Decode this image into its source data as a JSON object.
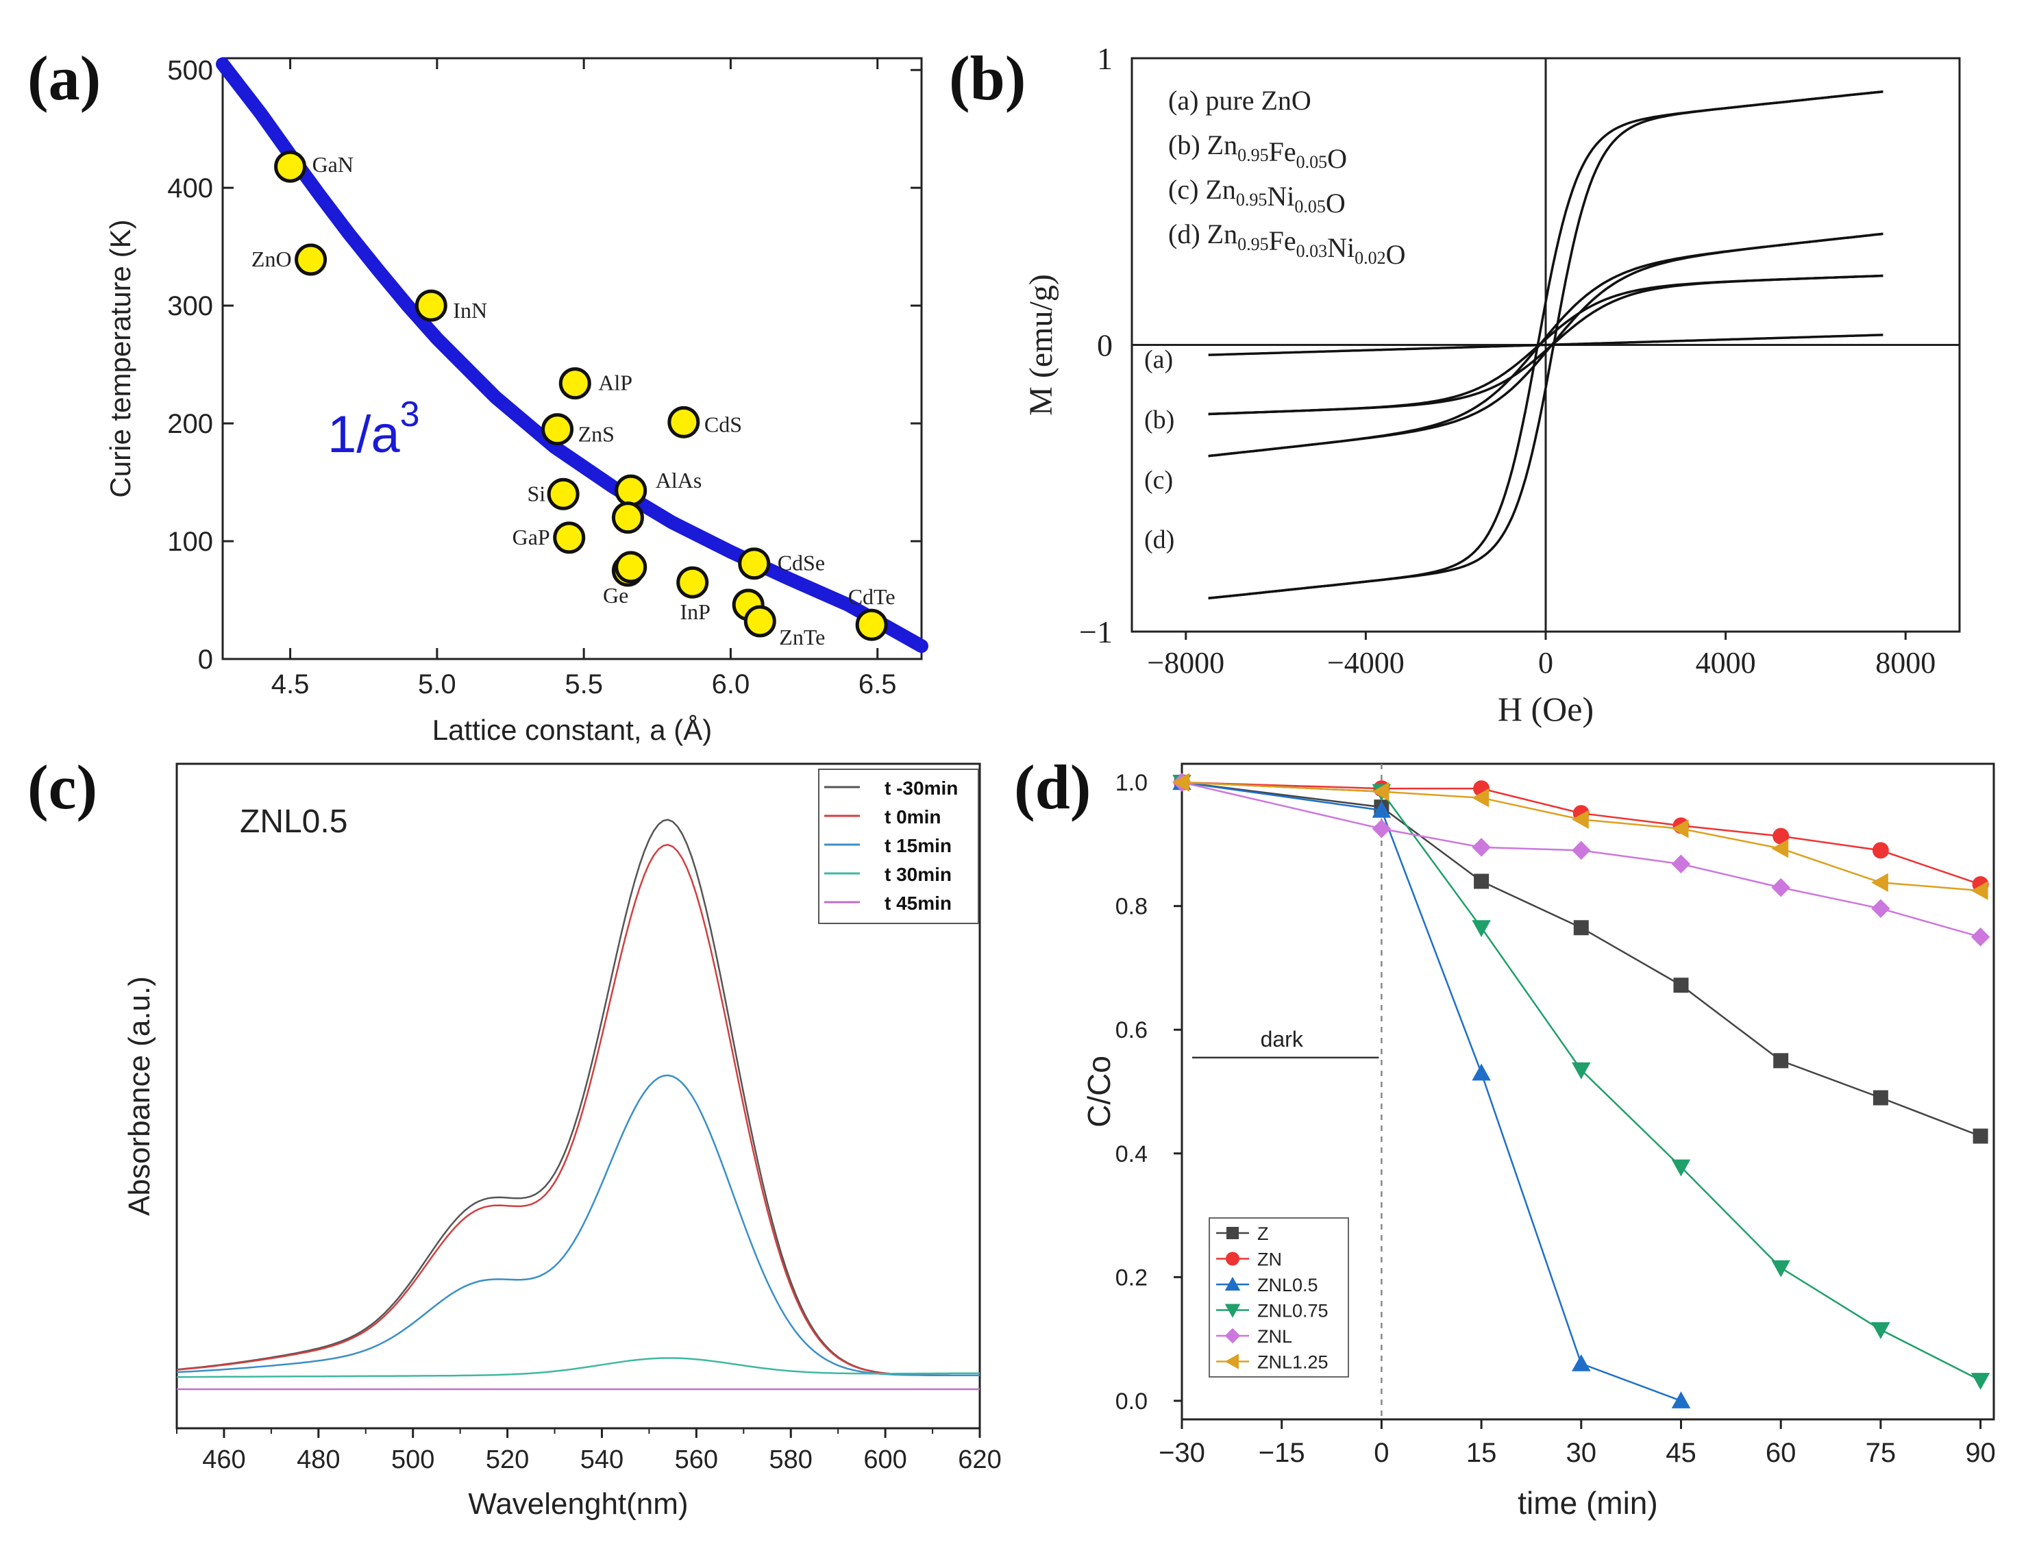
{
  "chart_data": [
    {
      "panel": "(a)",
      "type": "scatter",
      "title": "",
      "xlabel": "Lattice constant, a (Å)",
      "ylabel": "Curie temperature (K)",
      "xlim": [
        4.27,
        6.65
      ],
      "ylim": [
        0,
        510
      ],
      "xticks": [
        4.5,
        5.0,
        5.5,
        6.0,
        6.5
      ],
      "xticklabels": [
        "4.5",
        "5.0",
        "5.5",
        "6.0",
        "6.5"
      ],
      "yticks": [
        0,
        100,
        200,
        300,
        400,
        500
      ],
      "yticklabels": [
        "0",
        "100",
        "200",
        "300",
        "400",
        "500"
      ],
      "fit_label": "1/a",
      "fit_exponent": "3",
      "fit_curve": {
        "x": [
          4.27,
          4.4,
          4.5,
          4.6,
          4.7,
          4.8,
          4.9,
          5.0,
          5.2,
          5.4,
          5.6,
          5.8,
          6.0,
          6.2,
          6.4,
          6.65
        ],
        "y": [
          505,
          463,
          428,
          394,
          361,
          330,
          300,
          272,
          222,
          180,
          146,
          116,
          91,
          68,
          46,
          11
        ]
      },
      "points": [
        {
          "name": "GaN",
          "x": 4.5,
          "y": 418
        },
        {
          "name": "ZnO",
          "x": 4.57,
          "y": 339
        },
        {
          "name": "InN",
          "x": 4.98,
          "y": 300
        },
        {
          "name": "AlP",
          "x": 5.47,
          "y": 234
        },
        {
          "name": "ZnS",
          "x": 5.41,
          "y": 195
        },
        {
          "name": "CdS",
          "x": 5.84,
          "y": 201
        },
        {
          "name": "Si",
          "x": 5.43,
          "y": 140
        },
        {
          "name": "AlAs",
          "x": 5.66,
          "y": 143
        },
        {
          "name": "",
          "x": 5.65,
          "y": 120
        },
        {
          "name": "GaP",
          "x": 5.45,
          "y": 103
        },
        {
          "name": "",
          "x": 5.65,
          "y": 75
        },
        {
          "name": "Ge",
          "x": 5.66,
          "y": 78
        },
        {
          "name": "InP",
          "x": 5.87,
          "y": 65
        },
        {
          "name": "CdSe",
          "x": 6.08,
          "y": 81
        },
        {
          "name": "",
          "x": 6.06,
          "y": 46
        },
        {
          "name": "ZnTe",
          "x": 6.1,
          "y": 32
        },
        {
          "name": "CdTe",
          "x": 6.48,
          "y": 29
        }
      ],
      "point_color": "#ffee00",
      "curve_color": "#1a1ad8"
    },
    {
      "panel": "(b)",
      "type": "line",
      "xlabel": "H (Oe)",
      "ylabel": "M (emu/g)",
      "xlim": [
        -9200,
        9200
      ],
      "ylim": [
        -1,
        1
      ],
      "xticks": [
        -8000,
        -4000,
        0,
        4000,
        8000
      ],
      "xticklabels": [
        "−8000",
        "−4000",
        "0",
        "4000",
        "8000"
      ],
      "yticks": [
        -1,
        0,
        1
      ],
      "yticklabels": [
        "−1",
        "0",
        "1"
      ],
      "legend": [
        "(a) pure ZnO",
        "(b) Zn0.95Fe0.05O",
        "(c) Zn0.95Ni0.05O",
        "(d) Zn0.95Fe0.03Ni0.02O"
      ],
      "curve_labels": [
        "(a)",
        "(b)",
        "(c)",
        "(d)"
      ],
      "series": [
        {
          "name": "(a)",
          "Ms": 0.035,
          "slope_only": true,
          "Hc": 0
        },
        {
          "name": "(b)",
          "Ms": 0.2,
          "chi": 5.5e-06,
          "H0": 1500,
          "Hc": 150
        },
        {
          "name": "(c)",
          "Ms": 0.26,
          "chi": 1.7e-05,
          "H0": 1500,
          "Hc": 150
        },
        {
          "name": "(d)",
          "Ms": 0.76,
          "chi": 1.65e-05,
          "H0": 900,
          "Hc": 180
        }
      ]
    },
    {
      "panel": "(c)",
      "type": "line",
      "annotation": "ZNL0.5",
      "xlabel": "Wavelenght(nm)",
      "ylabel": "Absorbance (a.u.)",
      "xlim": [
        450,
        620
      ],
      "xticks": [
        460,
        480,
        500,
        520,
        540,
        560,
        580,
        600,
        620
      ],
      "xticklabels": [
        "460",
        "480",
        "500",
        "520",
        "540",
        "560",
        "580",
        "600",
        "620"
      ],
      "legend_position": "top-right",
      "series": [
        {
          "name": "t -30min",
          "color": "#555555",
          "peak": 1.0,
          "base": 0.025
        },
        {
          "name": "t 0min",
          "color": "#d04040",
          "peak": 0.955,
          "base": 0.025
        },
        {
          "name": "t 15min",
          "color": "#3a8fc8",
          "peak": 0.54,
          "base": 0.025
        },
        {
          "name": "t 30min",
          "color": "#3fb8a0",
          "peak": 0.03,
          "base": 0.02,
          "flat": 0.022
        },
        {
          "name": "t 45min",
          "color": "#c070c8",
          "peak": 0.0,
          "base": 0.0,
          "flat": 0.0
        }
      ]
    },
    {
      "panel": "(d)",
      "type": "line",
      "xlabel": "time (min)",
      "ylabel": "C/Co",
      "xlim": [
        -30,
        92
      ],
      "ylim": [
        -0.03,
        1.03
      ],
      "xticks": [
        -30,
        -15,
        0,
        15,
        30,
        45,
        60,
        75,
        90
      ],
      "xticklabels": [
        "−30",
        "−15",
        "0",
        "15",
        "30",
        "45",
        "60",
        "75",
        "90"
      ],
      "yticks": [
        0.0,
        0.2,
        0.4,
        0.6,
        0.8,
        1.0
      ],
      "yticklabels": [
        "0.0",
        "0.2",
        "0.4",
        "0.6",
        "0.8",
        "1.0"
      ],
      "annotation": "dark",
      "legend_position": "bottom-left",
      "series": [
        {
          "name": "Z",
          "color": "#444444",
          "marker": "square",
          "x": [
            -30,
            0,
            15,
            30,
            45,
            60,
            75,
            90
          ],
          "y": [
            1.0,
            0.96,
            0.84,
            0.765,
            0.672,
            0.55,
            0.49,
            0.428
          ]
        },
        {
          "name": "ZN",
          "color": "#ee3333",
          "marker": "circle",
          "x": [
            -30,
            0,
            15,
            30,
            45,
            60,
            75,
            90
          ],
          "y": [
            1.0,
            0.99,
            0.99,
            0.95,
            0.93,
            0.913,
            0.89,
            0.835
          ]
        },
        {
          "name": "ZNL0.5",
          "color": "#1f6fc8",
          "marker": "triangle-up",
          "x": [
            -30,
            0,
            15,
            30,
            45
          ],
          "y": [
            1.0,
            0.955,
            0.53,
            0.06,
            0.0
          ]
        },
        {
          "name": "ZNL0.75",
          "color": "#1fa06a",
          "marker": "triangle-down",
          "x": [
            -30,
            0,
            15,
            30,
            45,
            60,
            75,
            90
          ],
          "y": [
            1.0,
            0.985,
            0.765,
            0.535,
            0.378,
            0.215,
            0.115,
            0.033
          ]
        },
        {
          "name": "ZNL",
          "color": "#cc77dd",
          "marker": "diamond",
          "x": [
            -30,
            0,
            15,
            30,
            45,
            60,
            75,
            90
          ],
          "y": [
            1.0,
            0.925,
            0.895,
            0.89,
            0.868,
            0.83,
            0.796,
            0.75
          ]
        },
        {
          "name": "ZNL1.25",
          "color": "#dda020",
          "marker": "triangle-left",
          "x": [
            -30,
            0,
            15,
            30,
            45,
            60,
            75,
            90
          ],
          "y": [
            1.0,
            0.985,
            0.975,
            0.94,
            0.925,
            0.893,
            0.838,
            0.825
          ]
        }
      ]
    }
  ],
  "panel_labels": [
    "(a)",
    "(b)",
    "(c)",
    "(d)"
  ]
}
